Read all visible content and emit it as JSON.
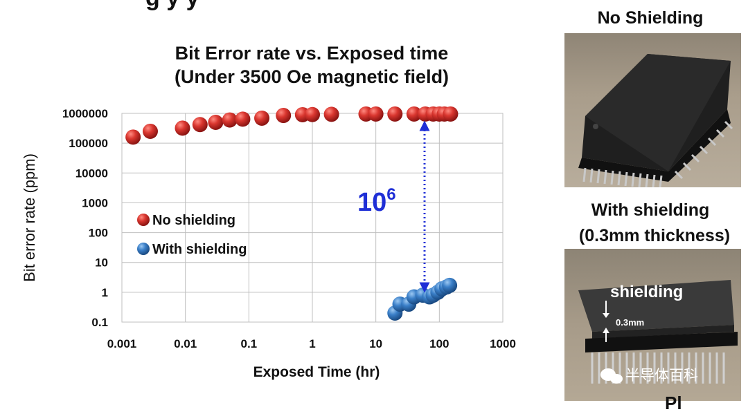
{
  "chart_data": {
    "type": "scatter",
    "title": "Bit Error rate vs. Exposed time",
    "subtitle": "(Under 3500 Oe magnetic field)",
    "xlabel": "Exposed Time (hr)",
    "ylabel": "Bit error rate  (ppm)",
    "x_scale": "log",
    "y_scale": "log",
    "xlim": [
      0.001,
      1000
    ],
    "ylim": [
      0.1,
      1000000
    ],
    "x_ticks": [
      "0.001",
      "0.01",
      "0.1",
      "1",
      "10",
      "100",
      "1000"
    ],
    "y_ticks": [
      "1000000",
      "100000",
      "10000",
      "1000",
      "100",
      "10",
      "1",
      "0.1"
    ],
    "grid": true,
    "legend_position": "left-middle",
    "series": [
      {
        "name": "No shielding",
        "color": "#c0282a",
        "points": [
          [
            0.0015,
            160000
          ],
          [
            0.0028,
            250000
          ],
          [
            0.009,
            320000
          ],
          [
            0.017,
            420000
          ],
          [
            0.03,
            500000
          ],
          [
            0.05,
            600000
          ],
          [
            0.08,
            640000
          ],
          [
            0.16,
            690000
          ],
          [
            0.35,
            850000
          ],
          [
            0.7,
            900000
          ],
          [
            1.0,
            910000
          ],
          [
            2.0,
            930000
          ],
          [
            7.0,
            950000
          ],
          [
            10.0,
            950000
          ],
          [
            20.0,
            950000
          ],
          [
            40.0,
            950000
          ],
          [
            60.0,
            950000
          ],
          [
            80.0,
            950000
          ],
          [
            100.0,
            950000
          ],
          [
            120.0,
            950000
          ],
          [
            150.0,
            950000
          ]
        ]
      },
      {
        "name": "With shielding",
        "color": "#2f6db5",
        "points": [
          [
            20,
            0.2
          ],
          [
            24,
            0.4
          ],
          [
            33,
            0.4
          ],
          [
            40,
            0.7
          ],
          [
            55,
            0.8
          ],
          [
            70,
            0.7
          ],
          [
            80,
            0.8
          ],
          [
            95,
            1.0
          ],
          [
            110,
            1.3
          ],
          [
            130,
            1.5
          ],
          [
            145,
            1.7
          ]
        ]
      }
    ],
    "annotation": {
      "base": "10",
      "exponent": "6",
      "color": "#1f2fd6"
    }
  },
  "photos": {
    "top_label": "No Shielding",
    "bottom_label_line1": "With shielding",
    "bottom_label_line2": "(0.3mm thickness)",
    "shielding_text": "shielding",
    "thickness_text": "0.3mm",
    "watermark_text": "半导体百科"
  },
  "slide_title_fragment": "g                           y   y",
  "slide_bottom_fragment": "Pl"
}
